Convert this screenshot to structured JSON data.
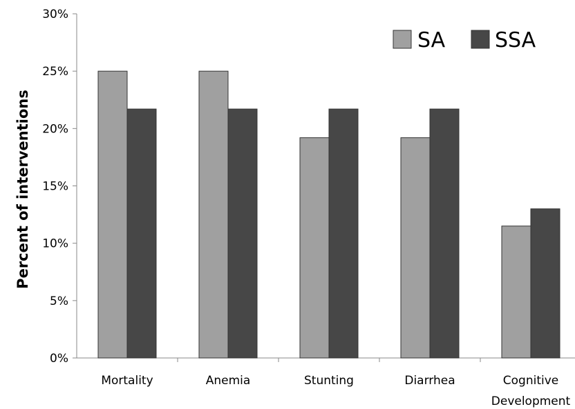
{
  "chart_data": {
    "type": "bar",
    "title": "",
    "xlabel": "",
    "ylabel": "Percent of interventions",
    "ylim": [
      0,
      30
    ],
    "y_ticks": [
      "0%",
      "5%",
      "10%",
      "15%",
      "20%",
      "25%",
      "30%"
    ],
    "y_tick_values": [
      0,
      5,
      10,
      15,
      20,
      25,
      30
    ],
    "categories": [
      [
        "Mortality"
      ],
      [
        "Anemia"
      ],
      [
        "Stunting"
      ],
      [
        "Diarrhea"
      ],
      [
        "Cognitive",
        "Development"
      ]
    ],
    "series": [
      {
        "name": "SA",
        "color": "#a0a0a0",
        "values": [
          25.0,
          25.0,
          19.2,
          19.2,
          11.5
        ]
      },
      {
        "name": "SSA",
        "color": "#474747",
        "values": [
          21.7,
          21.7,
          21.7,
          21.7,
          13.0
        ]
      }
    ],
    "legend": {
      "position": "top-right"
    },
    "grid": false
  }
}
